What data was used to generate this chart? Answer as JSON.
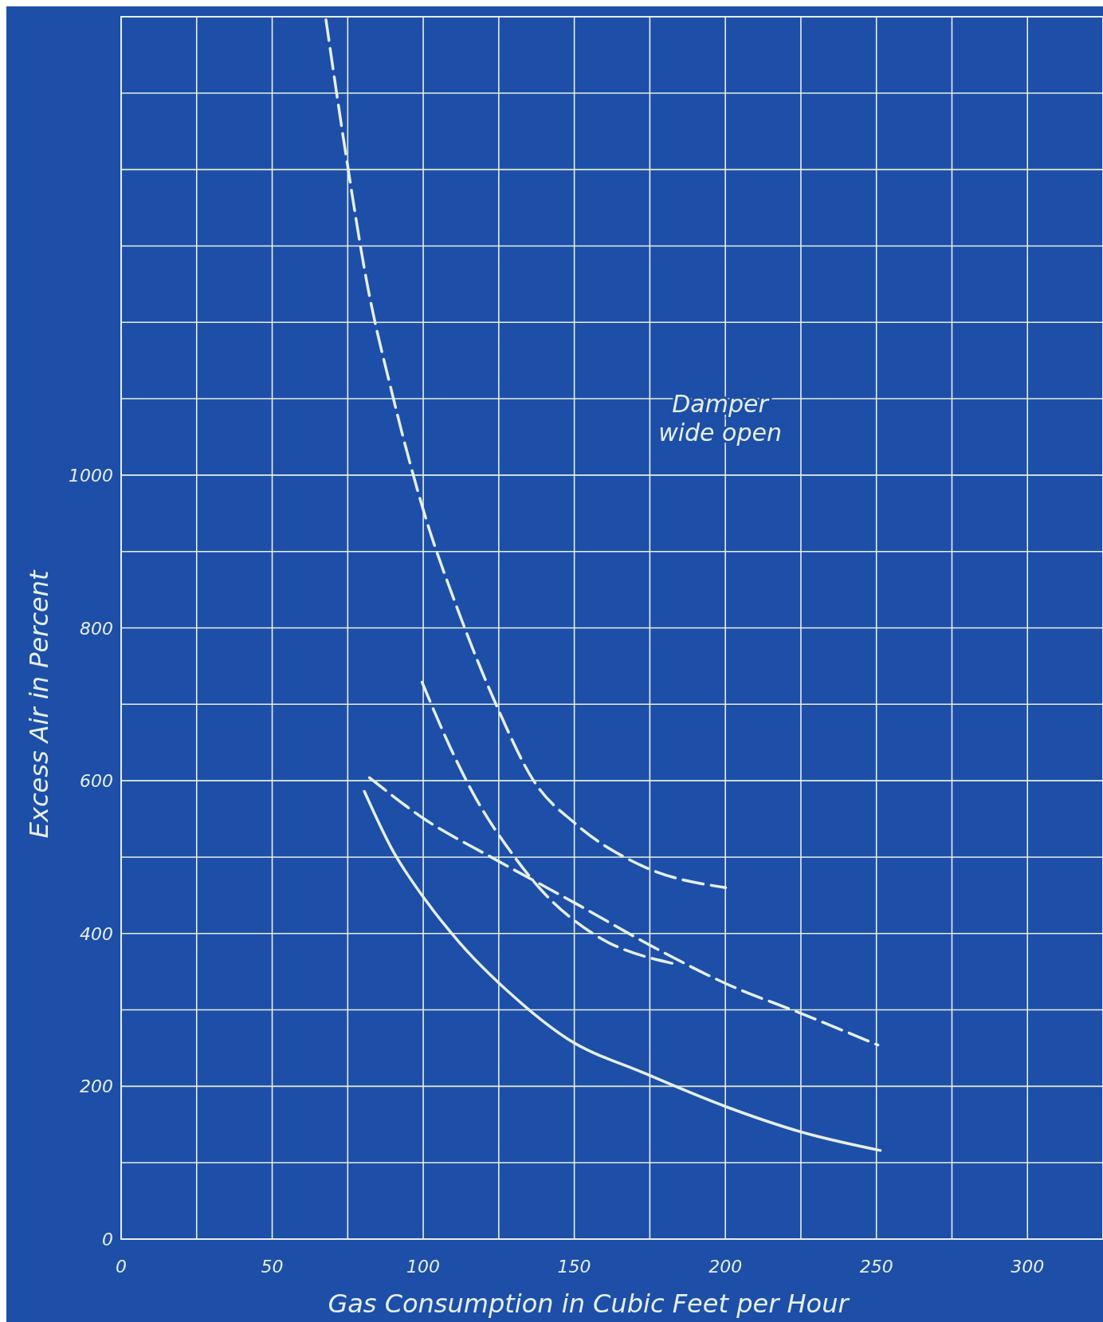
{
  "chart_data": {
    "type": "line",
    "xlabel": "Gas Consumption in Cubic Feet per Hour",
    "ylabel": "Excess Air in Percent",
    "xlim": [
      0,
      325
    ],
    "ylim": [
      0,
      1600
    ],
    "xticks": [
      0,
      {
        "value": 25,
        "label": null
      },
      50,
      {
        "value": 75,
        "label": null
      },
      100,
      {
        "value": 125,
        "label": null
      },
      150,
      {
        "value": 175,
        "label": null
      },
      200,
      {
        "value": 225,
        "label": null
      },
      250,
      {
        "value": 275,
        "label": null
      },
      300
    ],
    "yticks": [
      0,
      {
        "value": 100,
        "label": null
      },
      200,
      {
        "value": 300,
        "label": null
      },
      400,
      {
        "value": 500,
        "label": null
      },
      600,
      {
        "value": 700,
        "label": null
      },
      800,
      {
        "value": 900,
        "label": null
      },
      1000,
      {
        "value": 1100,
        "label": null
      },
      {
        "value": 1200,
        "label": null
      },
      {
        "value": 1300,
        "label": null
      },
      {
        "value": 1400,
        "label": null
      },
      {
        "value": 1500,
        "label": null
      }
    ],
    "grid": true,
    "marker": "none",
    "series": [
      {
        "color": "#e6efe2",
        "line_style": "dashed",
        "x": [
          67.8,
          74.5,
          81.4,
          89.7,
          100.2,
          111.8,
          124.3,
          136.7,
          150.3,
          172.7,
          200.1
        ],
        "values": [
          1596,
          1417,
          1251,
          1107,
          952,
          820,
          698,
          599,
          544,
          488,
          460
        ]
      },
      {
        "color": "#e6efe2",
        "line_style": "dashed",
        "x": [
          99.6,
          109,
          117.4,
          128.4,
          139.5,
          156.1,
          182.4
        ],
        "values": [
          729,
          643,
          577,
          510,
          455,
          400,
          361
        ]
      },
      {
        "color": "#e6efe2",
        "line_style": "dashed",
        "x": [
          82.2,
          100.7,
          122.9,
          150.6,
          178.2,
          200.4,
          225.3,
          250.5
        ],
        "values": [
          604,
          549,
          499,
          439,
          378,
          334,
          295,
          254
        ]
      },
      {
        "color": "#e6efe2",
        "line_style": "solid",
        "x": [
          80.5,
          89.7,
          100.7,
          111.8,
          128.4,
          147.8,
          172.7,
          200.4,
          225.3,
          251.3
        ],
        "values": [
          586,
          510,
          444,
          389,
          323,
          262,
          218,
          173,
          140,
          116
        ]
      }
    ],
    "annotations": [
      "Damper\nwide open"
    ]
  }
}
